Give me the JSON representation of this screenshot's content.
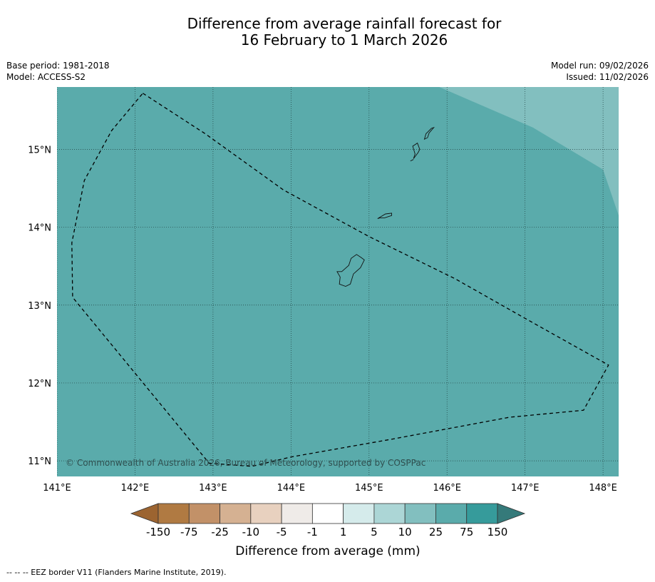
{
  "title": {
    "line1": "Difference from average rainfall forecast for",
    "line2": "16 February to 1 March 2026"
  },
  "meta": {
    "base_period": "Base period: 1981-2018",
    "model": "Model: ACCESS-S2",
    "model_run": "Model run: 09/02/2026",
    "issued": "Issued: 11/02/2026"
  },
  "map": {
    "lon_ticks": [
      "141°E",
      "142°E",
      "143°E",
      "144°E",
      "145°E",
      "146°E",
      "147°E",
      "148°E"
    ],
    "lat_ticks": [
      "15°N",
      "14°N",
      "13°N",
      "12°N",
      "11°N"
    ],
    "lon_range": [
      141.0,
      148.2
    ],
    "lat_range": [
      10.8,
      15.8
    ],
    "background_category_color": "#5aabab",
    "upper_category_color": "#82bfbf",
    "eez_border": [
      [
        142.1,
        15.72
      ],
      [
        142.9,
        15.2
      ],
      [
        143.9,
        14.48
      ],
      [
        145.0,
        13.88
      ],
      [
        146.1,
        13.34
      ],
      [
        147.0,
        12.83
      ],
      [
        148.07,
        12.23
      ],
      [
        147.75,
        11.65
      ],
      [
        146.8,
        11.56
      ],
      [
        145.3,
        11.28
      ],
      [
        144.0,
        11.05
      ],
      [
        143.5,
        10.93
      ],
      [
        142.95,
        10.97
      ],
      [
        141.2,
        13.1
      ],
      [
        141.19,
        13.8
      ],
      [
        141.35,
        14.6
      ],
      [
        141.7,
        15.24
      ],
      [
        142.1,
        15.72
      ]
    ],
    "islands": [
      {
        "name": "Guam",
        "points": [
          [
            144.65,
            13.43
          ],
          [
            144.74,
            13.51
          ],
          [
            144.77,
            13.6
          ],
          [
            144.84,
            13.65
          ],
          [
            144.9,
            13.61
          ],
          [
            144.94,
            13.58
          ],
          [
            144.89,
            13.48
          ],
          [
            144.8,
            13.4
          ],
          [
            144.76,
            13.27
          ],
          [
            144.7,
            13.24
          ],
          [
            144.62,
            13.27
          ],
          [
            144.63,
            13.36
          ],
          [
            144.59,
            13.43
          ]
        ]
      },
      {
        "name": "Rota",
        "points": [
          [
            145.11,
            14.11
          ],
          [
            145.21,
            14.17
          ],
          [
            145.29,
            14.18
          ],
          [
            145.29,
            14.15
          ],
          [
            145.2,
            14.12
          ],
          [
            145.14,
            14.12
          ]
        ]
      },
      {
        "name": "Tinian",
        "points": [
          [
            145.57,
            14.88
          ],
          [
            145.63,
            14.96
          ],
          [
            145.65,
            15.0
          ],
          [
            145.62,
            15.08
          ],
          [
            145.56,
            15.04
          ],
          [
            145.59,
            14.94
          ]
        ]
      },
      {
        "name": "Saipan",
        "points": [
          [
            145.71,
            15.13
          ],
          [
            145.73,
            15.2
          ],
          [
            145.8,
            15.27
          ],
          [
            145.83,
            15.28
          ],
          [
            145.77,
            15.21
          ],
          [
            145.75,
            15.15
          ]
        ]
      },
      {
        "name": "Aguijan",
        "points": [
          [
            145.53,
            14.85
          ],
          [
            145.57,
            14.87
          ]
        ]
      }
    ],
    "copyright": "© Commonwealth of Australia 2026, Bureau of Meteorology, supported by COSPPac"
  },
  "colorbar": {
    "labels": [
      "-150",
      "-75",
      "-25",
      "-10",
      "-5",
      "-1",
      "1",
      "5",
      "10",
      "25",
      "75",
      "150"
    ],
    "colors": [
      "#9c6430",
      "#b07a42",
      "#c29168",
      "#d5b192",
      "#e8d1bf",
      "#efebe8",
      "#ffffff",
      "#d5ebeb",
      "#acd6d6",
      "#82bfbf",
      "#5aabab",
      "#369b9b",
      "#357a7a"
    ],
    "title": "Difference from average (mm)"
  },
  "footer": "--  --  -- EEZ border V11 (Flanders Marine Institute, 2019)."
}
